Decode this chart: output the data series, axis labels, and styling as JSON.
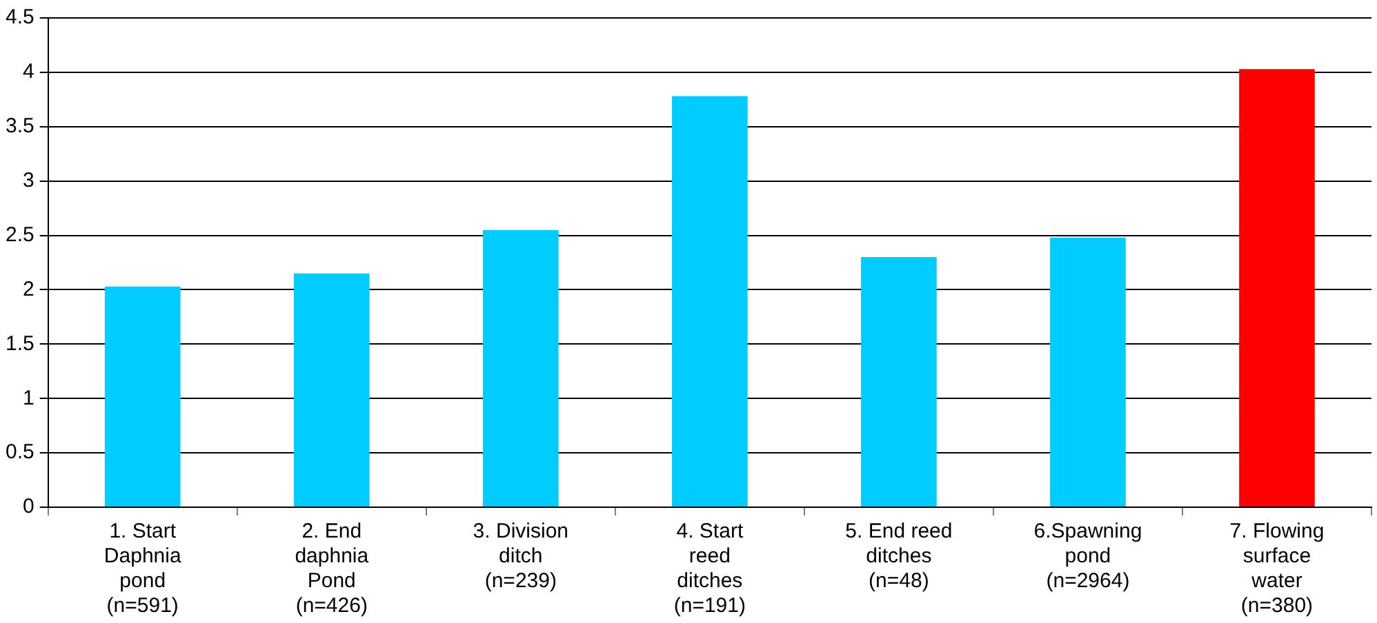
{
  "chart_data": {
    "type": "bar",
    "categories": [
      "1. Start Daphnia pond (n=591)",
      "2. End daphnia Pond (n=426)",
      "3. Division ditch (n=239)",
      "4. Start reed ditches (n=191)",
      "5. End reed ditches (n=48)",
      "6.Spawning pond (n=2964)",
      "7. Flowing surface water (n=380)"
    ],
    "values": [
      2.03,
      2.15,
      2.55,
      3.78,
      2.3,
      2.48,
      4.03
    ],
    "colors": [
      "#00ccff",
      "#00ccff",
      "#00ccff",
      "#00ccff",
      "#00ccff",
      "#00ccff",
      "#ff0000"
    ],
    "ylim": [
      0,
      4.5
    ],
    "yticks": [
      0,
      0.5,
      1,
      1.5,
      2,
      2.5,
      3,
      3.5,
      4,
      4.5
    ],
    "grid": "y",
    "legend": false
  }
}
